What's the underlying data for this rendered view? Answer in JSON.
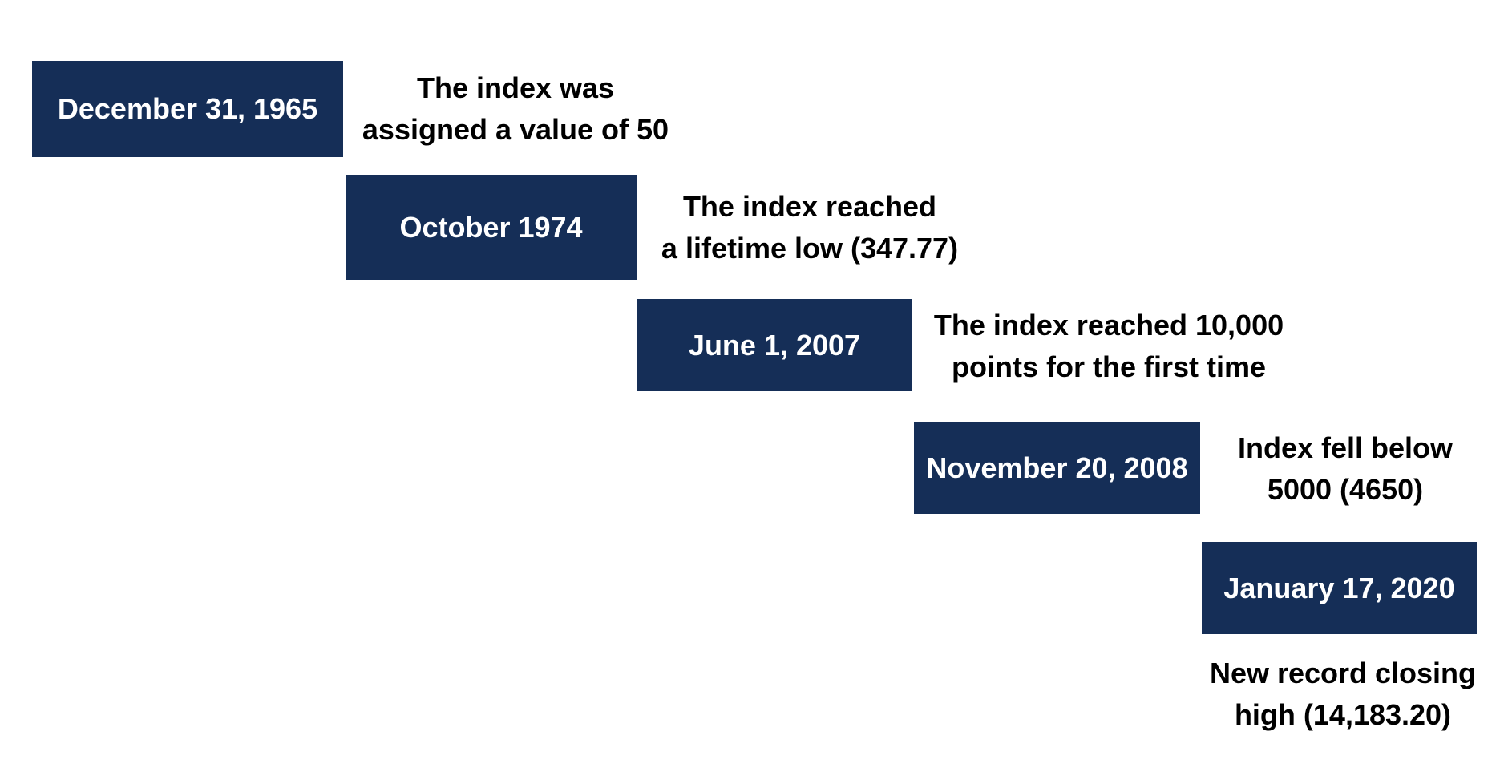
{
  "events": [
    {
      "date": "December 31, 1965",
      "description": [
        "The index was",
        "assigned a value of 50"
      ]
    },
    {
      "date": "October 1974",
      "description": [
        "The index reached",
        "a lifetime low (347.77)"
      ]
    },
    {
      "date": "June 1, 2007",
      "description": [
        "The index reached 10,000",
        "points for the first time"
      ]
    },
    {
      "date": "November 20, 2008",
      "description": [
        "Index fell below",
        "5000 (4650)"
      ]
    },
    {
      "date": "January 17, 2020",
      "description": [
        "New record closing",
        "high (14,183.20)"
      ]
    }
  ]
}
